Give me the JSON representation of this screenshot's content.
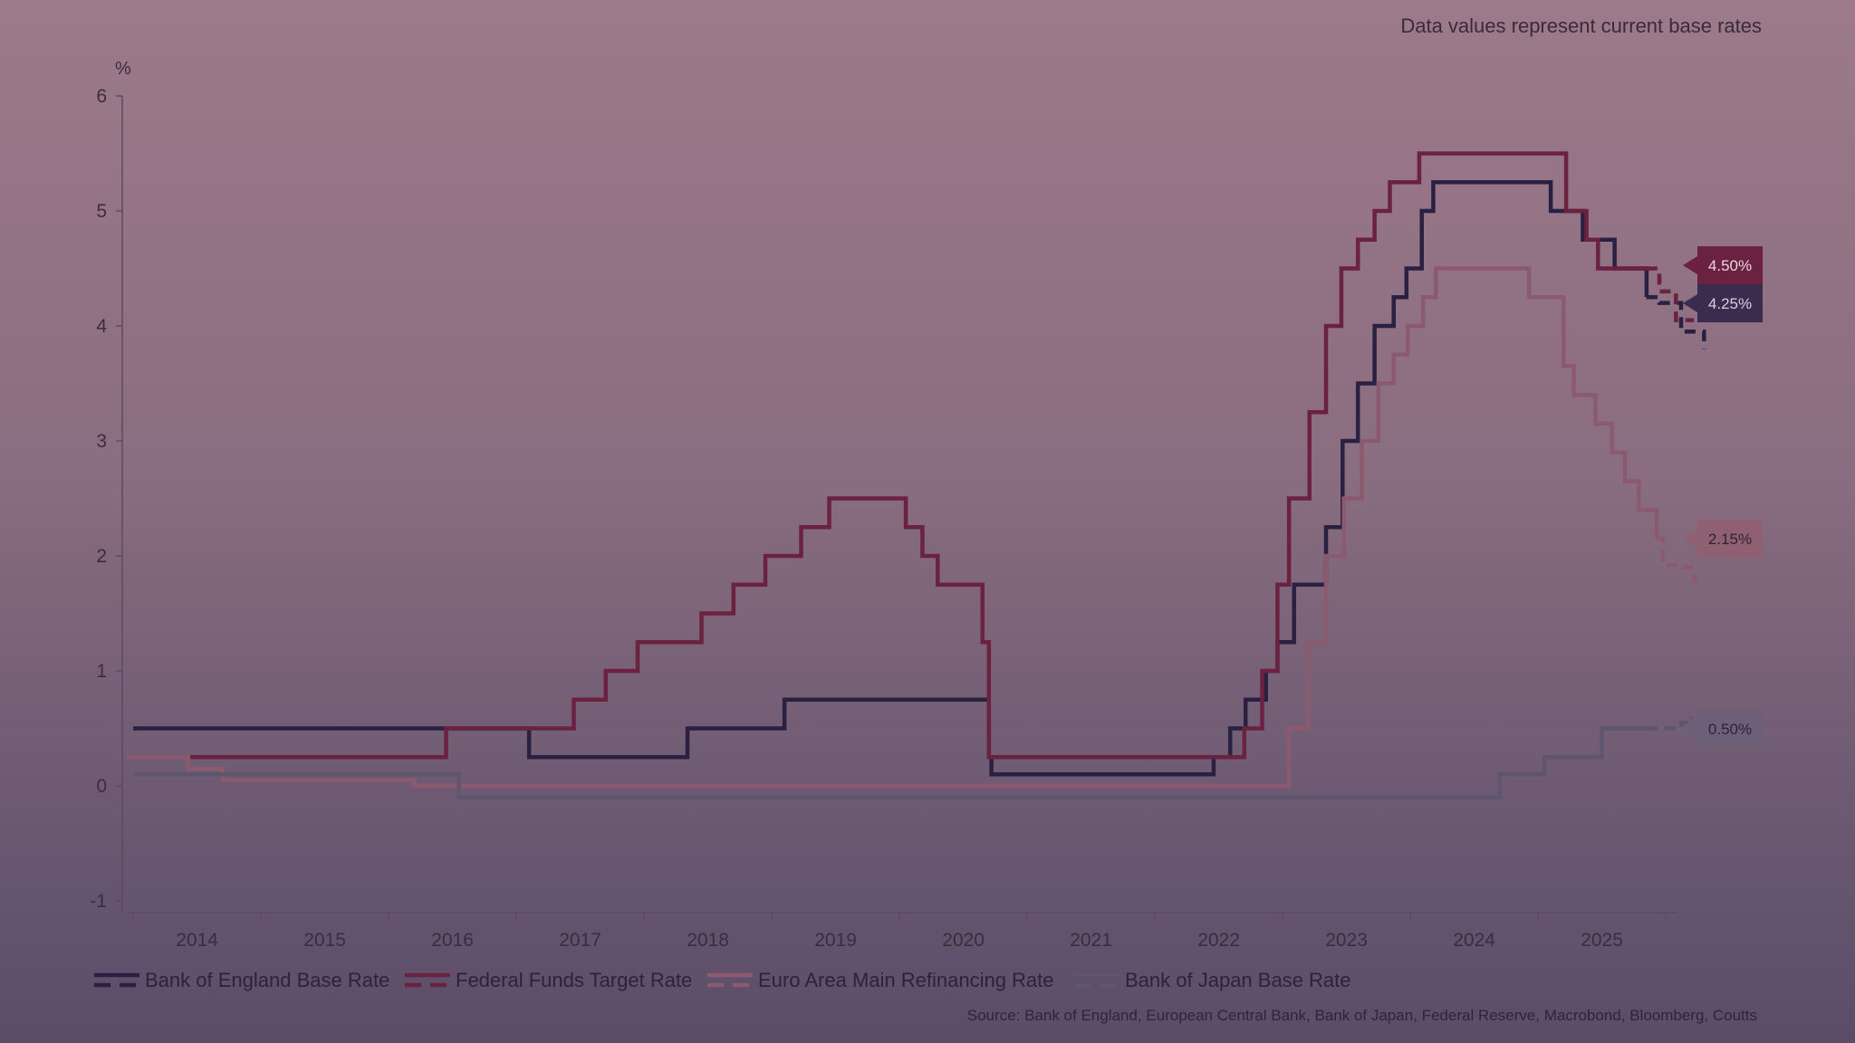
{
  "chart_data": {
    "type": "line",
    "note": "Data values represent current base rates",
    "ylabel": "%",
    "source": "Source: Bank of England, European Central Bank, Bank of Japan, Federal Reserve, Macrobond, Bloomberg, Coutts",
    "ylim": [
      -1,
      6
    ],
    "xlim": [
      2013.45,
      2025.5
    ],
    "y_ticks": [
      "-1",
      "0",
      "1",
      "2",
      "3",
      "4",
      "5",
      "6"
    ],
    "x_ticks": [
      "2014",
      "2015",
      "2016",
      "2017",
      "2018",
      "2019",
      "2020",
      "2021",
      "2022",
      "2023",
      "2024",
      "2025"
    ],
    "grid": false,
    "legend_position": "bottom-left",
    "series": [
      {
        "name": "Bank of England Base Rate",
        "color": "#2a2142",
        "end_label": "4.25%",
        "values": [
          [
            2013.5,
            0.5
          ],
          [
            2016.6,
            0.5
          ],
          [
            2016.6,
            0.25
          ],
          [
            2017.84,
            0.25
          ],
          [
            2017.84,
            0.5
          ],
          [
            2018.6,
            0.5
          ],
          [
            2018.6,
            0.75
          ],
          [
            2020.2,
            0.75
          ],
          [
            2020.2,
            0.25
          ],
          [
            2020.22,
            0.25
          ],
          [
            2020.22,
            0.1
          ],
          [
            2021.96,
            0.1
          ],
          [
            2021.96,
            0.25
          ],
          [
            2022.09,
            0.25
          ],
          [
            2022.09,
            0.5
          ],
          [
            2022.21,
            0.5
          ],
          [
            2022.21,
            0.75
          ],
          [
            2022.37,
            0.75
          ],
          [
            2022.37,
            1.0
          ],
          [
            2022.46,
            1.0
          ],
          [
            2022.46,
            1.25
          ],
          [
            2022.59,
            1.25
          ],
          [
            2022.59,
            1.75
          ],
          [
            2022.84,
            1.75
          ],
          [
            2022.84,
            2.25
          ],
          [
            2022.97,
            2.25
          ],
          [
            2022.97,
            3.0
          ],
          [
            2023.09,
            3.0
          ],
          [
            2023.09,
            3.5
          ],
          [
            2023.22,
            3.5
          ],
          [
            2023.22,
            4.0
          ],
          [
            2023.37,
            4.0
          ],
          [
            2023.37,
            4.25
          ],
          [
            2023.47,
            4.25
          ],
          [
            2023.47,
            4.5
          ],
          [
            2023.59,
            4.5
          ],
          [
            2023.59,
            5.0
          ],
          [
            2023.68,
            5.0
          ],
          [
            2023.68,
            5.25
          ],
          [
            2024.6,
            5.25
          ],
          [
            2024.6,
            5.0
          ],
          [
            2024.85,
            5.0
          ],
          [
            2024.85,
            4.75
          ],
          [
            2025.1,
            4.75
          ],
          [
            2025.1,
            4.5
          ],
          [
            2025.35,
            4.5
          ],
          [
            2025.35,
            4.25
          ]
        ],
        "forecast": [
          [
            2025.35,
            4.25
          ],
          [
            2025.45,
            4.25
          ],
          [
            2025.45,
            4.2
          ],
          [
            2025.62,
            4.2
          ],
          [
            2025.62,
            3.95
          ],
          [
            2025.8,
            3.95
          ],
          [
            2025.8,
            3.8
          ]
        ]
      },
      {
        "name": "Federal Funds Target Rate",
        "color": "#6b2240",
        "end_label": "4.50%",
        "values": [
          [
            2013.93,
            0.25
          ],
          [
            2015.95,
            0.25
          ],
          [
            2015.95,
            0.5
          ],
          [
            2016.95,
            0.5
          ],
          [
            2016.95,
            0.75
          ],
          [
            2017.2,
            0.75
          ],
          [
            2017.2,
            1.0
          ],
          [
            2017.45,
            1.0
          ],
          [
            2017.45,
            1.25
          ],
          [
            2017.95,
            1.25
          ],
          [
            2017.95,
            1.5
          ],
          [
            2018.2,
            1.5
          ],
          [
            2018.2,
            1.75
          ],
          [
            2018.45,
            1.75
          ],
          [
            2018.45,
            2.0
          ],
          [
            2018.73,
            2.0
          ],
          [
            2018.73,
            2.25
          ],
          [
            2018.95,
            2.25
          ],
          [
            2018.95,
            2.5
          ],
          [
            2019.55,
            2.5
          ],
          [
            2019.55,
            2.25
          ],
          [
            2019.68,
            2.25
          ],
          [
            2019.68,
            2.0
          ],
          [
            2019.8,
            2.0
          ],
          [
            2019.8,
            1.75
          ],
          [
            2020.15,
            1.75
          ],
          [
            2020.15,
            1.25
          ],
          [
            2020.2,
            1.25
          ],
          [
            2020.2,
            0.25
          ],
          [
            2022.2,
            0.25
          ],
          [
            2022.2,
            0.5
          ],
          [
            2022.34,
            0.5
          ],
          [
            2022.34,
            1.0
          ],
          [
            2022.46,
            1.0
          ],
          [
            2022.46,
            1.75
          ],
          [
            2022.55,
            1.75
          ],
          [
            2022.55,
            2.5
          ],
          [
            2022.71,
            2.5
          ],
          [
            2022.71,
            3.25
          ],
          [
            2022.84,
            3.25
          ],
          [
            2022.84,
            4.0
          ],
          [
            2022.96,
            4.0
          ],
          [
            2022.96,
            4.5
          ],
          [
            2023.09,
            4.5
          ],
          [
            2023.09,
            4.75
          ],
          [
            2023.22,
            4.75
          ],
          [
            2023.22,
            5.0
          ],
          [
            2023.34,
            5.0
          ],
          [
            2023.34,
            5.25
          ],
          [
            2023.57,
            5.25
          ],
          [
            2023.57,
            5.5
          ],
          [
            2024.72,
            5.5
          ],
          [
            2024.72,
            5.0
          ],
          [
            2024.88,
            5.0
          ],
          [
            2024.88,
            4.75
          ],
          [
            2024.97,
            4.75
          ],
          [
            2024.97,
            4.5
          ],
          [
            2025.35,
            4.5
          ]
        ],
        "forecast": [
          [
            2025.35,
            4.5
          ],
          [
            2025.45,
            4.5
          ],
          [
            2025.45,
            4.3
          ],
          [
            2025.58,
            4.3
          ],
          [
            2025.58,
            4.05
          ],
          [
            2025.72,
            4.05
          ]
        ]
      },
      {
        "name": "Euro Area Main Refinancing Rate",
        "color": "#8c5a6e",
        "end_label": "2.15%",
        "values": [
          [
            2013.45,
            0.25
          ],
          [
            2013.93,
            0.25
          ],
          [
            2013.93,
            0.15
          ],
          [
            2014.2,
            0.15
          ],
          [
            2014.2,
            0.05
          ],
          [
            2015.7,
            0.05
          ],
          [
            2015.7,
            0.0
          ],
          [
            2022.55,
            0.0
          ],
          [
            2022.55,
            0.5
          ],
          [
            2022.7,
            0.5
          ],
          [
            2022.7,
            1.25
          ],
          [
            2022.84,
            1.25
          ],
          [
            2022.84,
            2.0
          ],
          [
            2022.98,
            2.0
          ],
          [
            2022.98,
            2.5
          ],
          [
            2023.12,
            2.5
          ],
          [
            2023.12,
            3.0
          ],
          [
            2023.25,
            3.0
          ],
          [
            2023.25,
            3.5
          ],
          [
            2023.37,
            3.5
          ],
          [
            2023.37,
            3.75
          ],
          [
            2023.48,
            3.75
          ],
          [
            2023.48,
            4.0
          ],
          [
            2023.6,
            4.0
          ],
          [
            2023.6,
            4.25
          ],
          [
            2023.7,
            4.25
          ],
          [
            2023.7,
            4.5
          ],
          [
            2024.43,
            4.5
          ],
          [
            2024.43,
            4.25
          ],
          [
            2024.7,
            4.25
          ],
          [
            2024.7,
            3.65
          ],
          [
            2024.78,
            3.65
          ],
          [
            2024.78,
            3.4
          ],
          [
            2024.95,
            3.4
          ],
          [
            2024.95,
            3.15
          ],
          [
            2025.08,
            3.15
          ],
          [
            2025.08,
            2.9
          ],
          [
            2025.18,
            2.9
          ],
          [
            2025.18,
            2.65
          ],
          [
            2025.29,
            2.65
          ],
          [
            2025.29,
            2.4
          ],
          [
            2025.43,
            2.4
          ],
          [
            2025.43,
            2.15
          ]
        ],
        "forecast": [
          [
            2025.43,
            2.15
          ],
          [
            2025.48,
            2.15
          ],
          [
            2025.48,
            1.92
          ],
          [
            2025.65,
            1.92
          ],
          [
            2025.65,
            1.9
          ],
          [
            2025.72,
            1.9
          ],
          [
            2025.72,
            1.78
          ],
          [
            2025.8,
            1.78
          ]
        ]
      },
      {
        "name": "Bank of Japan Base Rate",
        "color": "#5e556f",
        "end_label": "0.50%",
        "values": [
          [
            2013.5,
            0.1
          ],
          [
            2016.05,
            0.1
          ],
          [
            2016.05,
            -0.1
          ],
          [
            2024.2,
            -0.1
          ],
          [
            2024.2,
            0.1
          ],
          [
            2024.55,
            0.1
          ],
          [
            2024.55,
            0.25
          ],
          [
            2025.0,
            0.25
          ],
          [
            2025.0,
            0.5
          ],
          [
            2025.35,
            0.5
          ]
        ],
        "forecast": [
          [
            2025.35,
            0.5
          ],
          [
            2025.62,
            0.5
          ],
          [
            2025.62,
            0.55
          ],
          [
            2025.7,
            0.55
          ],
          [
            2025.7,
            0.6
          ]
        ]
      }
    ]
  }
}
